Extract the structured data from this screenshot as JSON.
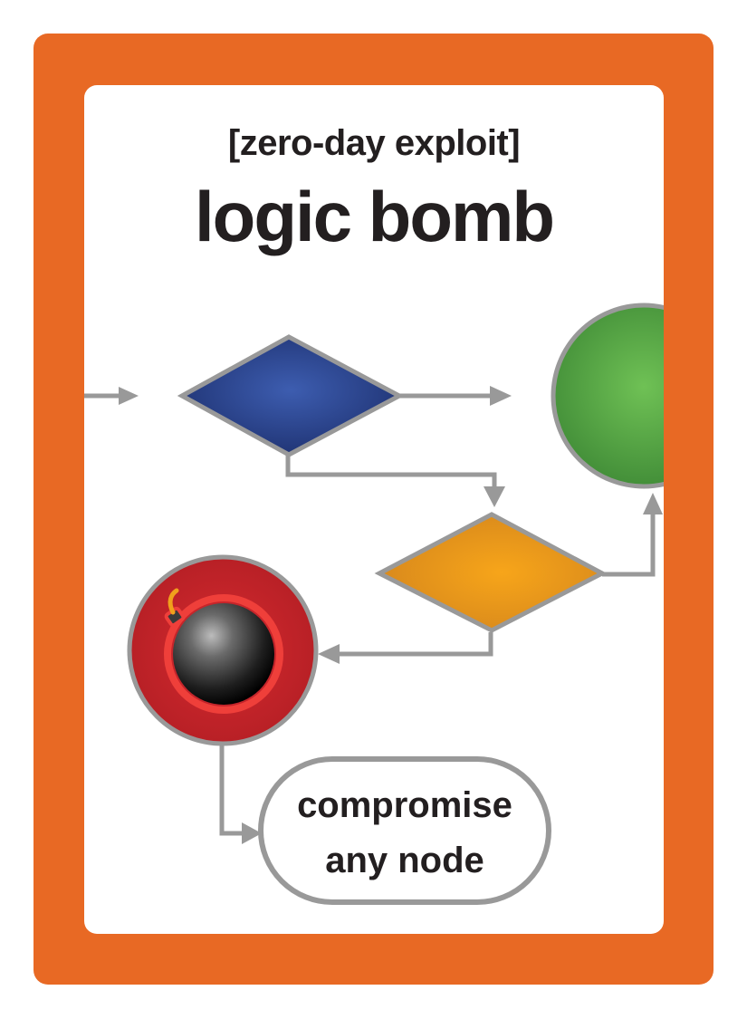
{
  "card": {
    "subtitle": "[zero-day exploit]",
    "title": "logic bomb",
    "action_line1": "compromise",
    "action_line2": "any node"
  },
  "colors": {
    "frame": "#e86924",
    "decision_blue": "#2c4593",
    "decision_orange": "#f0a01c",
    "terminal_green": "#5aac4a",
    "bomb_red": "#c8232a",
    "connector_gray": "#999999"
  },
  "icons": [
    "bomb-icon"
  ]
}
